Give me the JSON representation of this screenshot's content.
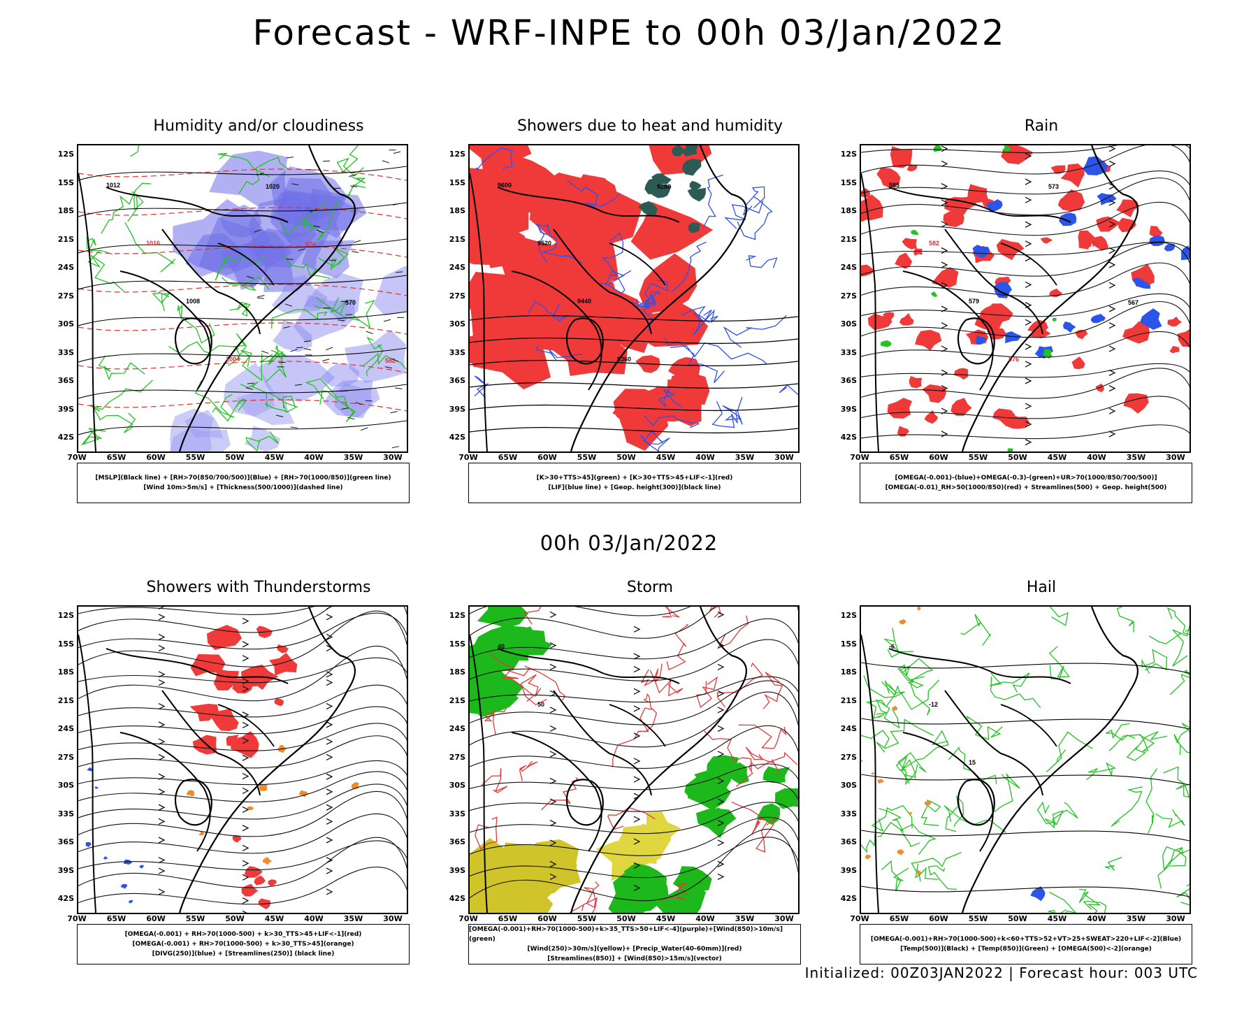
{
  "header": {
    "title": "Forecast - WRF-INPE to 00h 03/Jan/2022",
    "subtitle": "00h 03/Jan/2022",
    "footer": "Initialized: 00Z03JAN2022 | Forecast hour: 003 UTC"
  },
  "axes": {
    "lat": [
      "12S",
      "15S",
      "18S",
      "21S",
      "24S",
      "27S",
      "30S",
      "33S",
      "36S",
      "39S",
      "42S"
    ],
    "lon": [
      "70W",
      "65W",
      "60W",
      "55W",
      "50W",
      "45W",
      "40W",
      "35W",
      "30W"
    ]
  },
  "panels": [
    {
      "title": "Humidity and/or cloudiness",
      "legend": [
        "[MSLP](Black line) + [RH>70(850/700/500)](Blue) + [RH>70(1000/850)](green line)",
        "[Wind 10m>5m/s] + [Thickness(500/1000)](dashed line)"
      ],
      "bg": "#ffffff",
      "labels": [
        "1012",
        "1016",
        "1008",
        "1004",
        "1020",
        "576",
        "570",
        "582"
      ]
    },
    {
      "title": "Showers due to heat and humidity",
      "legend": [
        "[K>30+TTS>45](green) + [K>30+TTS>45+LIF<-1](red)",
        "[LIF](blue line) + [Geop. height(300)](black line)"
      ],
      "bg": "#ffffff",
      "labels": [
        "9600",
        "9520",
        "9440",
        "9360",
        "9280"
      ]
    },
    {
      "title": "Rain",
      "legend": [
        "[OMEGA(-0.001)-(blue)+OMEGA(-0.3)-(green)+UR>70(1000/850/700/500)]",
        "[OMEGA(-0.01)_RH>50(1000/850)(red) + Streamlines(500) + Geop. height(500)"
      ],
      "bg": "#ffffff",
      "labels": [
        "585",
        "582",
        "579",
        "576",
        "573",
        "570",
        "567"
      ]
    },
    {
      "title": "Showers with Thunderstorms",
      "legend": [
        "[OMEGA(-0.001) + RH>70(1000-500) + k>30_TTS>45+LIF<-1](red)",
        "[OMEGA(-0.001) + RH>70(1000-500) + k>30_TTS>45](orange)",
        "[DIVG(250)](blue) + [Streamlines(250)] (black line)"
      ],
      "bg": "#ffffff",
      "labels": []
    },
    {
      "title": "Storm",
      "legend": [
        "[OMEGA(-0.001)+RH>70(1000-500)+k>35_TTS>50+LIF<-4](purple)+[Wind(850)>10m/s](green)",
        "[Wind(250)>30m/s](yellow)+ [Precip_Water(40-60mm)](red)",
        "[Streamlines(850)] + [Wind(850)>15m/s](vector)"
      ],
      "bg": "#ffffff",
      "labels": [
        "40",
        "50"
      ]
    },
    {
      "title": "Hail",
      "legend": [
        "[OMEGA(-0.001)+RH>70(1000-500)+k<60+TTS>52+VT>25+SWEAT>220+LIF<-2](Blue)",
        "[Temp(500)](Black) + [Temp(850)](Green) + [OMEGA(500)<-2](orange)"
      ],
      "bg": "#ffffff",
      "labels": [
        "-6",
        "-12",
        "15"
      ]
    }
  ]
}
